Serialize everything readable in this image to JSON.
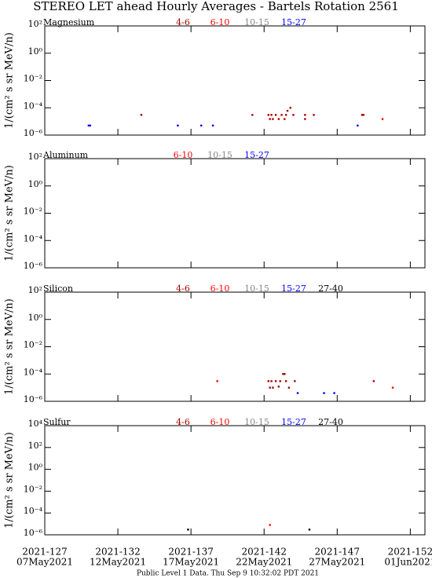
{
  "page_title": "STEREO LET ahead Hourly Averages - Bartels Rotation 2561",
  "footer": "Public Level 1 Data. Thu Sep  9 10:32:02 PDT 2021",
  "chart_data": [
    {
      "type": "scatter",
      "title": "Magnesium",
      "ylabel": "1/(cm² s sr MeV/n)",
      "yscale": "log",
      "xlim": [
        127,
        153
      ],
      "xticks": [
        127,
        132,
        137,
        142,
        147,
        152
      ],
      "ylim": [
        1e-06,
        100
      ],
      "yticks": [
        {
          "value": 100,
          "label": "10²"
        },
        {
          "value": 1,
          "label": "10⁰"
        },
        {
          "value": 0.01,
          "label": "10⁻²"
        },
        {
          "value": 0.0001,
          "label": "10⁻⁴"
        },
        {
          "value": 1e-06,
          "label": "10⁻⁶"
        }
      ],
      "series": [
        {
          "name": "4-6",
          "color": "#aa0000",
          "x": [
            133.6,
            141.2,
            142.3,
            142.4,
            142.5,
            142.6,
            142.8,
            143.0,
            143.2,
            143.4,
            143.5,
            143.6,
            143.8,
            144.0,
            144.8,
            144.8,
            145.4,
            148.7,
            148.8
          ],
          "values": [
            3e-05,
            3e-05,
            3e-05,
            1.5e-05,
            3e-05,
            1.5e-05,
            3e-05,
            1.5e-05,
            3e-05,
            1.5e-05,
            3e-05,
            6e-05,
            0.0001,
            3e-05,
            3e-05,
            1.5e-05,
            3e-05,
            3e-05,
            3e-05
          ]
        },
        {
          "name": "6-10",
          "color": "#ff0000",
          "x": [
            150.1
          ],
          "values": [
            1.5e-05
          ]
        },
        {
          "name": "10-15",
          "color": "#888888",
          "x": [],
          "values": []
        },
        {
          "name": "15-27",
          "color": "#0000ff",
          "x": [
            130.0,
            130.1,
            136.1,
            137.7,
            138.5,
            148.4
          ],
          "values": [
            5e-06,
            5e-06,
            5e-06,
            5e-06,
            5e-06,
            5e-06
          ]
        }
      ]
    },
    {
      "type": "scatter",
      "title": "Aluminum",
      "ylabel": "1/(cm² s sr MeV/n)",
      "yscale": "log",
      "xlim": [
        127,
        153
      ],
      "xticks": [
        127,
        132,
        137,
        142,
        147,
        152
      ],
      "ylim": [
        1e-06,
        100
      ],
      "yticks": [
        {
          "value": 100,
          "label": "10²"
        },
        {
          "value": 1,
          "label": "10⁰"
        },
        {
          "value": 0.01,
          "label": "10⁻²"
        },
        {
          "value": 0.0001,
          "label": "10⁻⁴"
        },
        {
          "value": 1e-06,
          "label": "10⁻⁶"
        }
      ],
      "series": [
        {
          "name": "6-10",
          "color": "#ff0000",
          "x": [],
          "values": []
        },
        {
          "name": "10-15",
          "color": "#888888",
          "x": [],
          "values": []
        },
        {
          "name": "15-27",
          "color": "#0000ff",
          "x": [],
          "values": []
        }
      ]
    },
    {
      "type": "scatter",
      "title": "Silicon",
      "ylabel": "1/(cm² s sr MeV/n)",
      "yscale": "log",
      "xlim": [
        127,
        153
      ],
      "xticks": [
        127,
        132,
        137,
        142,
        147,
        152
      ],
      "ylim": [
        1e-06,
        100
      ],
      "yticks": [
        {
          "value": 100,
          "label": "10²"
        },
        {
          "value": 1,
          "label": "10⁰"
        },
        {
          "value": 0.01,
          "label": "10⁻²"
        },
        {
          "value": 0.0001,
          "label": "10⁻⁴"
        },
        {
          "value": 1e-06,
          "label": "10⁻⁶"
        }
      ],
      "series": [
        {
          "name": "4-6",
          "color": "#aa0000",
          "x": [
            142.3,
            142.4,
            142.5,
            142.6,
            142.8,
            143.0,
            143.1,
            143.3,
            143.4,
            143.5,
            143.7,
            144.1,
            149.5
          ],
          "values": [
            3e-05,
            1e-05,
            3e-05,
            1e-05,
            3e-05,
            1.2e-05,
            3e-05,
            0.0001,
            0.0001,
            3e-05,
            1e-05,
            3e-05,
            3e-05
          ]
        },
        {
          "name": "6-10",
          "color": "#ff0000",
          "x": [
            138.8,
            150.8
          ],
          "values": [
            3e-05,
            1e-05
          ]
        },
        {
          "name": "10-15",
          "color": "#888888",
          "x": [],
          "values": []
        },
        {
          "name": "15-27",
          "color": "#0000ff",
          "x": [
            144.3,
            146.1,
            146.8
          ],
          "values": [
            4e-06,
            4e-06,
            4e-06
          ]
        },
        {
          "name": "27-40",
          "color": "#000000",
          "x": [],
          "values": []
        }
      ]
    },
    {
      "type": "scatter",
      "title": "Sulfur",
      "ylabel": "1/(cm² s sr MeV/n)",
      "yscale": "log",
      "xlim": [
        127,
        153
      ],
      "xticks": [
        {
          "value": 127,
          "label": "2021-127"
        },
        {
          "value": 132,
          "label": "2021-132"
        },
        {
          "value": 137,
          "label": "2021-137"
        },
        {
          "value": 142,
          "label": "2021-142"
        },
        {
          "value": 147,
          "label": "2021-147"
        },
        {
          "value": 152,
          "label": "2021-152"
        }
      ],
      "xtick_dates": [
        "07May2021",
        "12May2021",
        "17May2021",
        "22May2021",
        "27May2021",
        "01Jun2021"
      ],
      "ylim": [
        1e-06,
        10000
      ],
      "yticks": [
        {
          "value": 10000,
          "label": "10⁴"
        },
        {
          "value": 100,
          "label": "10²"
        },
        {
          "value": 1,
          "label": "10⁰"
        },
        {
          "value": 0.01,
          "label": "10⁻²"
        },
        {
          "value": 0.0001,
          "label": "10⁻⁴"
        },
        {
          "value": 1e-06,
          "label": "10⁻⁶"
        }
      ],
      "series": [
        {
          "name": "4-6",
          "color": "#aa0000",
          "x": [],
          "values": []
        },
        {
          "name": "6-10",
          "color": "#ff0000",
          "x": [
            142.4
          ],
          "values": [
            8e-06
          ]
        },
        {
          "name": "10-15",
          "color": "#888888",
          "x": [],
          "values": []
        },
        {
          "name": "15-27",
          "color": "#0000ff",
          "x": [],
          "values": []
        },
        {
          "name": "27-40",
          "color": "#000000",
          "x": [
            136.8,
            145.1
          ],
          "values": [
            3e-06,
            3e-06
          ]
        }
      ]
    }
  ]
}
